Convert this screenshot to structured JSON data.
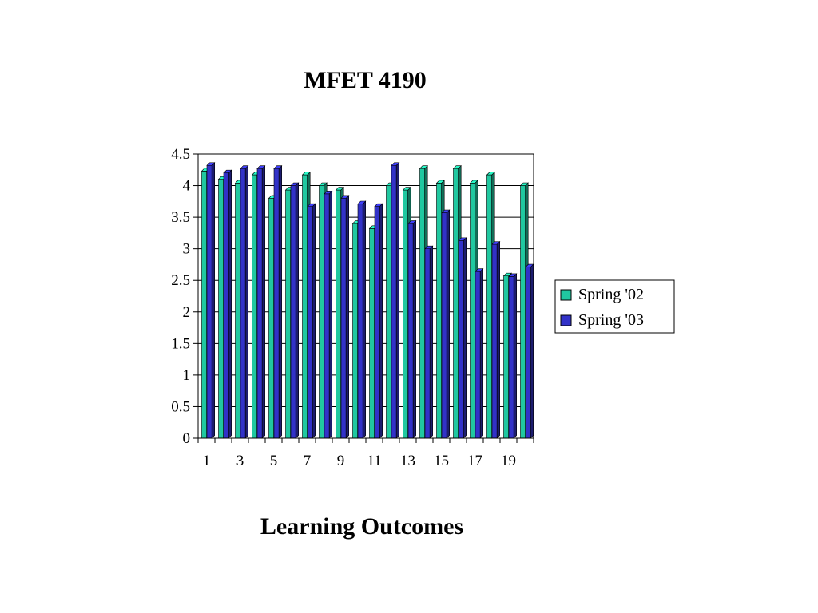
{
  "chart_data": {
    "type": "bar",
    "title": "MFET 4190",
    "xlabel": "Learning Outcomes",
    "ylabel": "",
    "ylim": [
      0,
      4.5
    ],
    "yticks": [
      0,
      0.5,
      1,
      1.5,
      2,
      2.5,
      3,
      3.5,
      4,
      4.5
    ],
    "categories": [
      1,
      2,
      3,
      4,
      5,
      6,
      7,
      8,
      9,
      10,
      11,
      12,
      13,
      14,
      15,
      16,
      17,
      18,
      19,
      20
    ],
    "x_tick_labels": [
      "1",
      "3",
      "5",
      "7",
      "9",
      "11",
      "13",
      "15",
      "17",
      "19"
    ],
    "grid": "horizontal",
    "legend_position": "right",
    "series": [
      {
        "name": "Spring '02",
        "color": "#20c8a0",
        "values": [
          4.23,
          4.1,
          4.04,
          4.17,
          3.8,
          3.93,
          4.17,
          4.0,
          3.93,
          3.4,
          3.32,
          4.0,
          3.93,
          4.27,
          4.04,
          4.27,
          4.04,
          4.17,
          2.57,
          4.0
        ]
      },
      {
        "name": "Spring '03",
        "color": "#3232c8",
        "values": [
          4.32,
          4.2,
          4.27,
          4.27,
          4.27,
          4.0,
          3.67,
          3.87,
          3.8,
          3.71,
          3.67,
          4.32,
          3.4,
          3.0,
          3.57,
          3.13,
          2.64,
          3.07,
          2.56,
          2.71
        ]
      }
    ]
  }
}
